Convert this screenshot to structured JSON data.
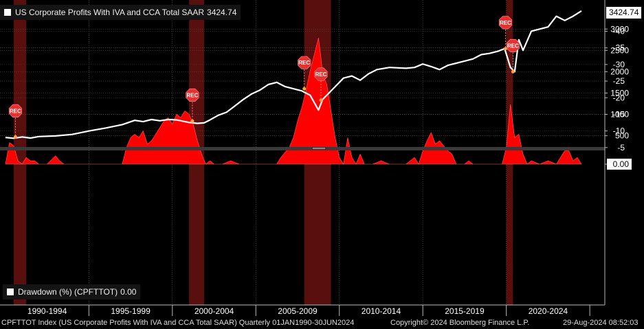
{
  "chart_data": {
    "type": "line",
    "panels": [
      {
        "name": "US Corporate Profits With IVA and CCA Total SAAR",
        "legend_label": "US Corporate Profits With IVA and CCA Total SAAR",
        "last_value": "3424.74",
        "ylim": [
          300,
          3600
        ],
        "yticks": [
          "500",
          "1000",
          "1500",
          "2000",
          "2500",
          "3000"
        ],
        "x": [
          1990.0,
          1990.5,
          1991.0,
          1991.5,
          1992.0,
          1993.0,
          1994.0,
          1995.0,
          1996.0,
          1997.0,
          1997.75,
          1998.25,
          1998.75,
          1999.25,
          1999.75,
          2000.25,
          2000.75,
          2001.0,
          2001.5,
          2001.9,
          2002.25,
          2002.75,
          2003.25,
          2003.75,
          2004.25,
          2004.75,
          2005.25,
          2005.75,
          2006.25,
          2006.75,
          2007.25,
          2007.75,
          2008.25,
          2008.75,
          2009.0,
          2009.25,
          2009.75,
          2010.25,
          2010.75,
          2011.25,
          2011.75,
          2012.25,
          2013.0,
          2014.0,
          2014.5,
          2015.0,
          2015.5,
          2016.0,
          2016.5,
          2017.0,
          2017.5,
          2018.0,
          2018.5,
          2019.0,
          2019.5,
          2019.9,
          2020.25,
          2020.5,
          2020.75,
          2021.0,
          2021.5,
          2022.0,
          2022.5,
          2023.0,
          2023.5,
          2024.0,
          2024.5
        ],
        "values": [
          460,
          440,
          470,
          445,
          480,
          495,
          530,
          610,
          680,
          760,
          860,
          830,
          880,
          850,
          880,
          870,
          830,
          810,
          790,
          800,
          870,
          980,
          1050,
          1200,
          1350,
          1480,
          1570,
          1700,
          1750,
          1650,
          1600,
          1550,
          1450,
          1100,
          1350,
          1450,
          1650,
          1850,
          1900,
          1800,
          1950,
          2050,
          2100,
          2080,
          2100,
          2180,
          2120,
          2050,
          2150,
          2200,
          2250,
          2300,
          2400,
          2430,
          2480,
          2540,
          2100,
          2000,
          2750,
          2500,
          2950,
          3000,
          3050,
          3300,
          3200,
          3300,
          3424.74
        ],
        "series_color": "#ffffff",
        "annotations": [
          {
            "label": "REC",
            "x": 1990.6,
            "y": 470
          },
          {
            "label": "REC",
            "x": 2001.2,
            "y": 840
          },
          {
            "label": "REC",
            "x": 2007.9,
            "y": 1600
          },
          {
            "label": "REC",
            "x": 2008.9,
            "y": 1330
          },
          {
            "label": "REC",
            "x": 2019.95,
            "y": 2540
          },
          {
            "label": "REC",
            "x": 2020.4,
            "y": 2000
          }
        ]
      },
      {
        "name": "Drawdown (%) (CPFTTOT)",
        "legend_label": "Drawdown (%) (CPFTTOT)",
        "last_value": "0.00",
        "ylim": [
          -41,
          1
        ],
        "yticks": [
          "0.00",
          "-5",
          "-10",
          "-15",
          "-20",
          "-25",
          "-30",
          "-35",
          "-40"
        ],
        "x": [
          1990.0,
          1990.25,
          1990.5,
          1990.75,
          1991.0,
          1991.25,
          1991.5,
          1991.75,
          1992.0,
          1992.5,
          1993.0,
          1993.25,
          1993.5,
          1994.0,
          1995.0,
          1997.0,
          1997.25,
          1997.5,
          1997.75,
          1998.0,
          1998.25,
          1998.5,
          1998.75,
          1999.0,
          1999.25,
          1999.5,
          1999.75,
          2000.0,
          2000.25,
          2000.5,
          2000.75,
          2001.0,
          2001.25,
          2001.5,
          2001.75,
          2002.0,
          2002.25,
          2002.5,
          2003.0,
          2003.5,
          2004.0,
          2004.5,
          2005.0,
          2006.25,
          2006.5,
          2007.0,
          2007.25,
          2007.5,
          2007.75,
          2008.0,
          2008.25,
          2008.5,
          2008.75,
          2008.9,
          2009.0,
          2009.25,
          2009.5,
          2009.75,
          2010.0,
          2010.25,
          2010.5,
          2010.75,
          2011.0,
          2011.25,
          2011.5,
          2012.0,
          2012.5,
          2013.0,
          2013.5,
          2014.0,
          2014.5,
          2014.75,
          2015.0,
          2015.25,
          2015.5,
          2015.75,
          2016.0,
          2016.25,
          2016.5,
          2016.75,
          2017.0,
          2017.25,
          2017.5,
          2017.75,
          2018.0,
          2019.0,
          2019.75,
          2020.0,
          2020.25,
          2020.5,
          2020.75,
          2021.0,
          2021.25,
          2021.5,
          2022.0,
          2022.5,
          2023.0,
          2023.25,
          2023.5,
          2023.75,
          2024.0,
          2024.25,
          2024.5
        ],
        "values": [
          0,
          -6.5,
          -5.5,
          -1,
          0,
          -2,
          -1,
          -1,
          0,
          0,
          -2.5,
          -1,
          0,
          0,
          0,
          0,
          -5,
          -8,
          -9,
          -8,
          -10,
          -6,
          -7,
          -9,
          -11,
          -13,
          -14,
          -12,
          -15,
          -14,
          -16,
          -15,
          -12,
          -7,
          -3,
          0,
          -1,
          0,
          0,
          -1,
          0,
          0,
          0,
          0,
          -2,
          -5,
          -8,
          -13,
          -17,
          -22,
          -28,
          -33,
          -38,
          -32,
          -27,
          -24,
          -16,
          -8,
          -2,
          0,
          -8,
          -2,
          0,
          -3,
          0,
          0,
          -1,
          0,
          0,
          0,
          -2,
          0,
          -4,
          -7,
          -9.5,
          -6,
          -7,
          -5.5,
          -4,
          -3,
          0,
          0,
          0,
          -1,
          0,
          0,
          0,
          -5,
          -18,
          -8,
          -9,
          -3,
          0,
          -1,
          0,
          -1,
          0,
          -2,
          -4,
          -4,
          -1,
          -2,
          0
        ],
        "area_color": "#ff0000"
      }
    ],
    "x_range": [
      1989.8,
      2025.9
    ],
    "xtick_labels": [
      "1990-1994",
      "1995-1999",
      "2000-2004",
      "2005-2009",
      "2010-2014",
      "2015-2019",
      "2020-2024"
    ],
    "recession_bands": [
      [
        1990.5,
        1991.25
      ],
      [
        2001.0,
        2001.9
      ],
      [
        2007.9,
        2009.5
      ],
      [
        2020.0,
        2020.4
      ]
    ]
  },
  "footer": {
    "left": "CPFTTOT Index (US Corporate Profits With IVA and CCA Total SAAR)  Quarterly 01JAN1990-30JUN2024",
    "copyright": "Copyright© 2024 Bloomberg Finance L.P.",
    "date": "29-Aug-2024 08:52:03"
  },
  "colors": {
    "background": "#000000",
    "recession": "#5a0f0f",
    "rec_tag": "#e83030"
  }
}
